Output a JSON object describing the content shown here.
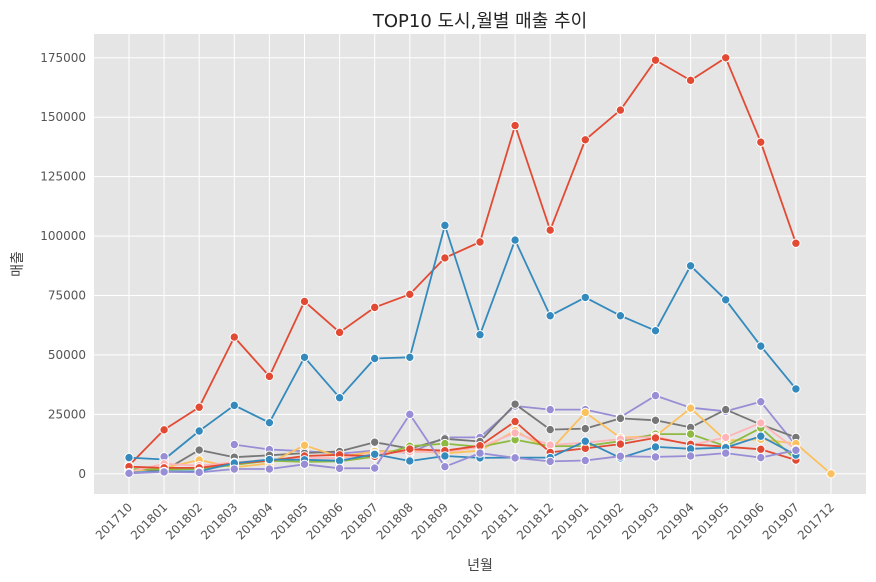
{
  "chart_data": {
    "type": "line",
    "title": "TOP10 도시,월별 매출 추이",
    "xlabel": "년월",
    "ylabel": "매출",
    "categories": [
      "201710",
      "201801",
      "201802",
      "201803",
      "201804",
      "201805",
      "201806",
      "201807",
      "201808",
      "201809",
      "201810",
      "201811",
      "201812",
      "201901",
      "201902",
      "201903",
      "201904",
      "201905",
      "201906",
      "201907",
      "201712"
    ],
    "ylim": [
      -8500,
      185000
    ],
    "yticks": [
      0,
      25000,
      50000,
      75000,
      100000,
      125000,
      150000,
      175000
    ],
    "grid": true,
    "background": "#e5e5e5",
    "series": [
      {
        "color": "#e24a33",
        "values": [
          3500,
          18500,
          28000,
          57500,
          41000,
          72500,
          59500,
          70000,
          75500,
          90800,
          97500,
          146500,
          102500,
          140500,
          153000,
          174000,
          165500,
          175000,
          139500,
          97000,
          null
        ]
      },
      {
        "color": "#348abd",
        "values": [
          6800,
          6000,
          18000,
          28800,
          21500,
          49000,
          32000,
          48500,
          49000,
          104500,
          58500,
          98300,
          66500,
          74200,
          66500,
          60200,
          87500,
          73200,
          53700,
          35700,
          null
        ]
      },
      {
        "color": "#988ed5",
        "values": [
          null,
          7200,
          null,
          12300,
          10200,
          9500,
          8500,
          9800,
          8800,
          15300,
          15300,
          28500,
          27000,
          27000,
          23800,
          32900,
          27800,
          26300,
          30300,
          12000,
          null
        ]
      },
      {
        "color": "#777777",
        "values": [
          1800,
          1300,
          10000,
          7000,
          7800,
          8700,
          9400,
          13300,
          10600,
          14700,
          13600,
          29300,
          18600,
          19000,
          23300,
          22500,
          19500,
          27000,
          20700,
          15300,
          null
        ]
      },
      {
        "color": "#fbc15e",
        "values": [
          1000,
          2500,
          5800,
          2700,
          4400,
          12000,
          7100,
          9400,
          9800,
          8600,
          9700,
          18200,
          9800,
          25800,
          15200,
          15800,
          27600,
          14000,
          14500,
          12700,
          0
        ]
      },
      {
        "color": "#8eba42",
        "values": [
          2000,
          1800,
          2000,
          3800,
          5500,
          5000,
          5200,
          7200,
          11600,
          12700,
          11300,
          14300,
          11600,
          11700,
          13700,
          16700,
          16700,
          11600,
          19300,
          6000,
          null
        ]
      },
      {
        "color": "#ffb5b8",
        "values": [
          800,
          4200,
          3400,
          4800,
          5900,
          6700,
          6600,
          8500,
          9300,
          9200,
          11200,
          17200,
          12100,
          13100,
          14600,
          15700,
          12000,
          15300,
          21400,
          10300,
          null
        ]
      },
      {
        "color": "#e24a33",
        "values": [
          3000,
          2500,
          2500,
          4400,
          5500,
          7500,
          8000,
          7300,
          10400,
          9700,
          11800,
          22000,
          9000,
          10700,
          12500,
          15100,
          12400,
          11400,
          10300,
          5800,
          null
        ]
      },
      {
        "color": "#348abd",
        "values": [
          500,
          1000,
          1000,
          4500,
          6000,
          5900,
          5500,
          8200,
          5400,
          7500,
          6700,
          6800,
          6800,
          13700,
          6700,
          11300,
          10500,
          11000,
          15800,
          7900,
          null
        ]
      },
      {
        "color": "#988ed5",
        "values": [
          200,
          800,
          600,
          2000,
          2000,
          4000,
          2300,
          2400,
          25000,
          3000,
          8700,
          6700,
          5200,
          5600,
          7400,
          7100,
          7500,
          8700,
          6800,
          9900,
          null
        ]
      }
    ]
  }
}
